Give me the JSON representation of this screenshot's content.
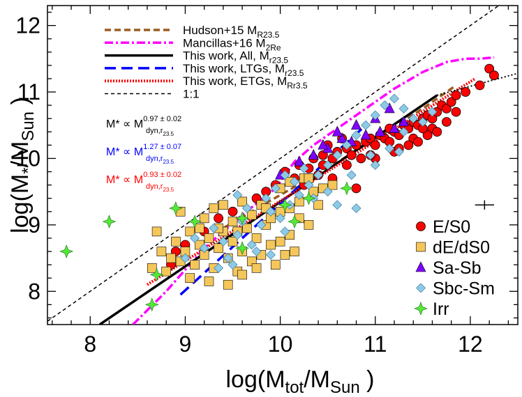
{
  "chart_data": {
    "type": "scatter",
    "xlabel": "log(M_tot/M_Sun )",
    "ylabel": "log(M_*/M_Sun )",
    "xlim": [
      7.55,
      12.5
    ],
    "ylim": [
      7.5,
      12.3
    ],
    "x_ticks": [
      "8",
      "9",
      "10",
      "11",
      "12"
    ],
    "y_ticks": [
      "8",
      "9",
      "10",
      "11",
      "12"
    ],
    "grid": false,
    "line_legend_placement": "top-left",
    "marker_legend_placement": "bottom-right",
    "lines": [
      {
        "name": "Hudson+15 M_R23.5",
        "name_main": "Hudson+15 M",
        "name_sub": "R23.5",
        "color": "#9b5c1e",
        "style": "dashed-thick",
        "x": [
          9.4,
          10.0,
          10.5,
          11.0,
          11.5,
          11.85
        ],
        "y": [
          8.95,
          9.45,
          9.85,
          10.3,
          10.75,
          11.1
        ]
      },
      {
        "name": "Mancillas+16 M_2Re",
        "name_main": "Mancillas+16 M",
        "name_sub": "2Re",
        "color": "#ff00ff",
        "style": "dashdot",
        "x": [
          8.45,
          8.8,
          9.2,
          9.6,
          9.95,
          10.15,
          10.35,
          10.6,
          10.9,
          11.2,
          11.5,
          11.75,
          11.95,
          12.1,
          12.25
        ],
        "y": [
          7.5,
          8.0,
          8.65,
          9.15,
          9.55,
          9.95,
          10.2,
          10.45,
          10.75,
          11.05,
          11.3,
          11.45,
          11.5,
          11.5,
          11.52
        ]
      },
      {
        "name": "This work, All, M_r23.5",
        "name_main": "This work, All, M",
        "name_sub": "r23.5",
        "color": "#000000",
        "style": "solid",
        "x": [
          8.1,
          11.65
        ],
        "y": [
          7.5,
          10.95
        ]
      },
      {
        "name": "This work, LTGs, M_r23.5",
        "name_main": "This work, LTGs, M",
        "name_sub": "r23.5",
        "color": "#0000ff",
        "style": "dashed",
        "x": [
          8.95,
          10.9
        ],
        "y": [
          7.95,
          10.5
        ]
      },
      {
        "name": "This work, ETGs, M_Rr3.5",
        "name_main": "This work, ETGs, M",
        "name_sub": "Rr3.5",
        "color": "#ff0000",
        "style": "dotted-thick",
        "x": [
          8.6,
          12.05
        ],
        "y": [
          8.1,
          11.2
        ]
      },
      {
        "name": "1:1",
        "name_main": "1:1",
        "name_sub": "",
        "color": "#000000",
        "style": "dashed-thin",
        "x": [
          7.55,
          12.3
        ],
        "y": [
          7.55,
          12.3
        ]
      }
    ],
    "extra_line": {
      "color": "#000000",
      "style": "dotted",
      "x": [
        11.65,
        12.5
      ],
      "y": [
        10.95,
        11.28
      ]
    },
    "relations": [
      {
        "lhs": "M* ∝ M",
        "exponent": "0.97 ± 0.02",
        "subscript": "dyn,r",
        "subsub": "23.5",
        "color": "#000000"
      },
      {
        "lhs": "M* ∝ M",
        "exponent": "1.27 ± 0.07",
        "subscript": "dyn,r",
        "subsub": "23.5",
        "color": "#0000ff"
      },
      {
        "lhs": "M* ∝ M",
        "exponent": "0.93 ± 0.02",
        "subscript": "dyn,r",
        "subsub": "23.5",
        "color": "#ff0000"
      }
    ],
    "error_cross": {
      "x": 12.15,
      "y": 9.3,
      "xerr": 0.1,
      "yerr": 0.07
    },
    "series": [
      {
        "name": "E/S0",
        "marker": "circle",
        "color": "#ff0000",
        "points": [
          [
            10.05,
            9.8
          ],
          [
            10.2,
            9.9
          ],
          [
            10.35,
            10.0
          ],
          [
            10.45,
            10.05
          ],
          [
            10.55,
            10.0
          ],
          [
            10.6,
            10.1
          ],
          [
            10.7,
            10.15
          ],
          [
            10.75,
            10.05
          ],
          [
            10.8,
            10.2
          ],
          [
            10.9,
            10.25
          ],
          [
            10.95,
            10.3
          ],
          [
            11.0,
            10.2
          ],
          [
            11.05,
            10.35
          ],
          [
            11.1,
            10.3
          ],
          [
            11.15,
            10.25
          ],
          [
            11.2,
            10.4
          ],
          [
            11.25,
            10.35
          ],
          [
            11.3,
            10.5
          ],
          [
            11.35,
            10.45
          ],
          [
            11.4,
            10.55
          ],
          [
            11.45,
            10.5
          ],
          [
            11.5,
            10.6
          ],
          [
            11.55,
            10.65
          ],
          [
            11.6,
            10.6
          ],
          [
            11.65,
            10.7
          ],
          [
            11.7,
            10.8
          ],
          [
            11.75,
            10.75
          ],
          [
            11.8,
            10.85
          ],
          [
            11.4,
            10.3
          ],
          [
            11.2,
            10.1
          ],
          [
            11.0,
            10.0
          ],
          [
            10.85,
            10.0
          ],
          [
            10.65,
            10.3
          ],
          [
            10.5,
            10.2
          ],
          [
            10.4,
            9.75
          ],
          [
            10.3,
            9.85
          ],
          [
            10.25,
            9.6
          ],
          [
            10.15,
            9.7
          ],
          [
            9.95,
            9.6
          ],
          [
            9.85,
            9.5
          ],
          [
            9.75,
            9.4
          ],
          [
            9.6,
            9.35
          ],
          [
            9.5,
            9.2
          ],
          [
            9.35,
            9.1
          ],
          [
            9.2,
            8.9
          ],
          [
            9.0,
            8.7
          ],
          [
            8.9,
            8.6
          ],
          [
            8.85,
            8.4
          ],
          [
            11.6,
            10.45
          ],
          [
            11.85,
            10.95
          ],
          [
            12.2,
            11.35
          ],
          [
            12.25,
            11.25
          ],
          [
            12.1,
            11.1
          ],
          [
            11.95,
            11.0
          ],
          [
            11.85,
            10.7
          ],
          [
            11.75,
            10.55
          ],
          [
            11.65,
            10.4
          ],
          [
            11.55,
            10.35
          ],
          [
            11.45,
            10.25
          ],
          [
            11.35,
            10.2
          ],
          [
            10.8,
            9.55
          ],
          [
            10.95,
            10.05
          ],
          [
            10.55,
            9.7
          ],
          [
            10.45,
            9.9
          ],
          [
            10.7,
            9.9
          ],
          [
            11.5,
            10.45
          ],
          [
            11.25,
            10.15
          ],
          [
            11.15,
            10.45
          ]
        ]
      },
      {
        "name": "dE/dS0",
        "marker": "square",
        "color": "#f5c75a",
        "points": [
          [
            8.7,
            8.9
          ],
          [
            8.75,
            8.6
          ],
          [
            8.8,
            8.3
          ],
          [
            8.85,
            8.5
          ],
          [
            8.9,
            8.75
          ],
          [
            8.95,
            8.45
          ],
          [
            9.0,
            8.6
          ],
          [
            9.05,
            8.9
          ],
          [
            9.1,
            8.4
          ],
          [
            9.15,
            8.7
          ],
          [
            9.2,
            8.55
          ],
          [
            9.25,
            8.8
          ],
          [
            9.3,
            8.35
          ],
          [
            9.35,
            8.65
          ],
          [
            9.4,
            8.9
          ],
          [
            9.45,
            8.5
          ],
          [
            9.5,
            8.75
          ],
          [
            9.55,
            8.3
          ],
          [
            9.6,
            8.6
          ],
          [
            9.65,
            8.95
          ],
          [
            9.7,
            8.45
          ],
          [
            9.75,
            8.8
          ],
          [
            9.8,
            8.55
          ],
          [
            9.85,
            9.0
          ],
          [
            9.9,
            8.7
          ],
          [
            9.95,
            8.4
          ],
          [
            10.0,
            8.75
          ],
          [
            10.05,
            8.55
          ],
          [
            10.1,
            8.85
          ],
          [
            10.15,
            8.6
          ],
          [
            9.2,
            9.1
          ],
          [
            9.3,
            9.25
          ],
          [
            9.4,
            9.3
          ],
          [
            9.5,
            9.05
          ],
          [
            9.6,
            9.35
          ],
          [
            9.7,
            9.15
          ],
          [
            9.8,
            9.3
          ],
          [
            9.9,
            9.1
          ],
          [
            10.0,
            9.2
          ],
          [
            10.1,
            9.25
          ],
          [
            10.2,
            9.35
          ],
          [
            10.3,
            9.0
          ],
          [
            10.4,
            9.3
          ],
          [
            8.65,
            8.35
          ],
          [
            8.95,
            9.2
          ],
          [
            9.05,
            8.2
          ],
          [
            9.25,
            8.15
          ],
          [
            9.45,
            8.1
          ],
          [
            9.6,
            8.25
          ],
          [
            9.75,
            8.35
          ],
          [
            10.0,
            9.55
          ],
          [
            10.1,
            9.65
          ],
          [
            10.25,
            9.7
          ],
          [
            10.35,
            9.5
          ],
          [
            9.15,
            8.95
          ],
          [
            9.35,
            8.95
          ],
          [
            9.55,
            8.9
          ],
          [
            9.85,
            9.25
          ],
          [
            10.2,
            9.1
          ],
          [
            10.3,
            9.7
          ],
          [
            10.45,
            9.55
          ],
          [
            10.55,
            9.6
          ]
        ]
      },
      {
        "name": "Sa-Sb",
        "marker": "triangle",
        "color": "#8000ff",
        "points": [
          [
            10.0,
            9.75
          ],
          [
            10.2,
            9.95
          ],
          [
            10.35,
            10.05
          ],
          [
            10.5,
            10.15
          ],
          [
            10.65,
            10.3
          ],
          [
            10.75,
            10.25
          ],
          [
            10.9,
            10.35
          ],
          [
            11.05,
            10.4
          ],
          [
            11.2,
            10.45
          ],
          [
            10.45,
            10.2
          ],
          [
            11.0,
            10.6
          ],
          [
            11.15,
            10.75
          ],
          [
            11.3,
            10.55
          ],
          [
            10.8,
            10.5
          ],
          [
            10.6,
            10.4
          ]
        ]
      },
      {
        "name": "Sbc-Sm",
        "marker": "diamond",
        "color": "#8ecae6",
        "points": [
          [
            9.0,
            8.5
          ],
          [
            9.1,
            8.8
          ],
          [
            9.2,
            8.65
          ],
          [
            9.3,
            8.95
          ],
          [
            9.4,
            8.75
          ],
          [
            9.5,
            8.4
          ],
          [
            9.55,
            8.85
          ],
          [
            9.6,
            9.05
          ],
          [
            9.7,
            8.7
          ],
          [
            9.8,
            9.0
          ],
          [
            9.9,
            9.2
          ],
          [
            10.0,
            9.1
          ],
          [
            10.1,
            9.3
          ],
          [
            10.2,
            9.45
          ],
          [
            10.3,
            9.6
          ],
          [
            10.4,
            9.75
          ],
          [
            10.5,
            9.9
          ],
          [
            10.6,
            10.05
          ],
          [
            10.7,
            10.2
          ],
          [
            10.8,
            10.35
          ],
          [
            10.9,
            10.5
          ],
          [
            11.0,
            10.65
          ],
          [
            11.1,
            10.8
          ],
          [
            11.2,
            10.9
          ],
          [
            11.3,
            10.75
          ],
          [
            11.4,
            10.6
          ],
          [
            10.25,
            9.85
          ],
          [
            10.15,
            9.65
          ],
          [
            9.95,
            9.55
          ],
          [
            9.85,
            9.4
          ],
          [
            9.65,
            9.25
          ],
          [
            9.45,
            8.5
          ],
          [
            9.35,
            8.35
          ],
          [
            9.75,
            8.6
          ],
          [
            9.9,
            8.55
          ],
          [
            10.05,
            8.9
          ],
          [
            10.35,
            9.4
          ],
          [
            10.6,
            9.3
          ],
          [
            10.8,
            9.25
          ],
          [
            11.0,
            9.9
          ],
          [
            11.15,
            10.15
          ],
          [
            11.3,
            10.4
          ],
          [
            11.5,
            10.55
          ],
          [
            11.6,
            10.7
          ],
          [
            10.5,
            9.5
          ],
          [
            10.75,
            9.75
          ],
          [
            9.55,
            9.45
          ],
          [
            10.05,
            9.75
          ],
          [
            11.25,
            10.1
          ],
          [
            10.95,
            10.05
          ]
        ]
      },
      {
        "name": "Irr",
        "marker": "star4",
        "color": "#55e839",
        "points": [
          [
            7.75,
            8.6
          ],
          [
            8.2,
            9.05
          ],
          [
            8.65,
            7.8
          ],
          [
            8.7,
            8.25
          ],
          [
            8.9,
            9.25
          ],
          [
            9.1,
            9.05
          ],
          [
            9.6,
            9.1
          ],
          [
            9.6,
            8.65
          ],
          [
            10.05,
            9.3
          ],
          [
            10.3,
            9.4
          ],
          [
            10.7,
            9.55
          ],
          [
            10.15,
            9.05
          ]
        ]
      }
    ]
  }
}
